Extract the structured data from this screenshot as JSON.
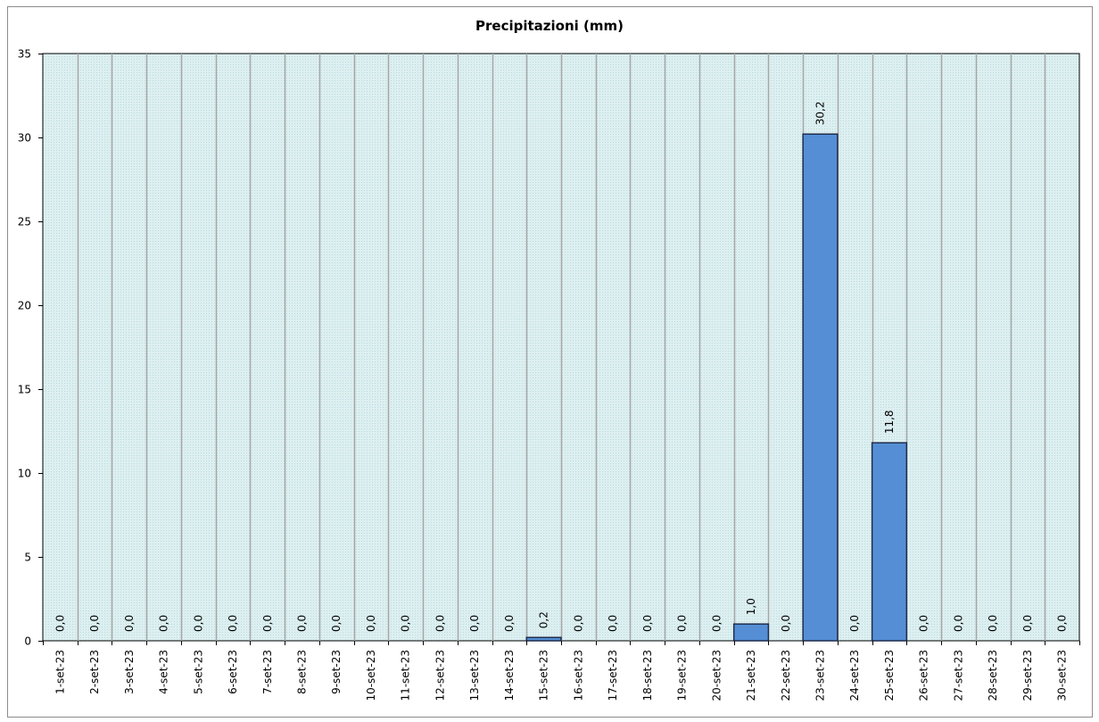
{
  "chart_data": {
    "type": "bar",
    "title": "Precipitazioni  (mm)",
    "xlabel": "",
    "ylabel": "",
    "ylim": [
      0,
      35
    ],
    "yticks": [
      0,
      5,
      10,
      15,
      20,
      25,
      30,
      35
    ],
    "grid": true,
    "legend": "none",
    "categories": [
      "1-set-23",
      "2-set-23",
      "3-set-23",
      "4-set-23",
      "5-set-23",
      "6-set-23",
      "7-set-23",
      "8-set-23",
      "9-set-23",
      "10-set-23",
      "11-set-23",
      "12-set-23",
      "13-set-23",
      "14-set-23",
      "15-set-23",
      "16-set-23",
      "17-set-23",
      "18-set-23",
      "19-set-23",
      "20-set-23",
      "21-set-23",
      "22-set-23",
      "23-set-23",
      "24-set-23",
      "25-set-23",
      "26-set-23",
      "27-set-23",
      "28-set-23",
      "29-set-23",
      "30-set-23"
    ],
    "values": [
      0,
      0,
      0,
      0,
      0,
      0,
      0,
      0,
      0,
      0,
      0,
      0,
      0,
      0,
      0.2,
      0,
      0,
      0,
      0,
      0,
      1.0,
      0,
      30.2,
      0,
      11.8,
      0,
      0,
      0,
      0,
      0
    ],
    "data_labels": [
      "0,0",
      "0,0",
      "0,0",
      "0,0",
      "0,0",
      "0,0",
      "0,0",
      "0,0",
      "0,0",
      "0,0",
      "0,0",
      "0,0",
      "0,0",
      "0,0",
      "0,2",
      "0,0",
      "0,0",
      "0,0",
      "0,0",
      "0,0",
      "1,0",
      "0,0",
      "30,2",
      "0,0",
      "11,8",
      "0,0",
      "0,0",
      "0,0",
      "0,0",
      "0,0"
    ],
    "colors": {
      "bar_fill": "#558ED5",
      "bar_stroke": "#1F2D4D",
      "plot_bg": "#DDEFF0",
      "grid": "#A6A6A6"
    }
  }
}
